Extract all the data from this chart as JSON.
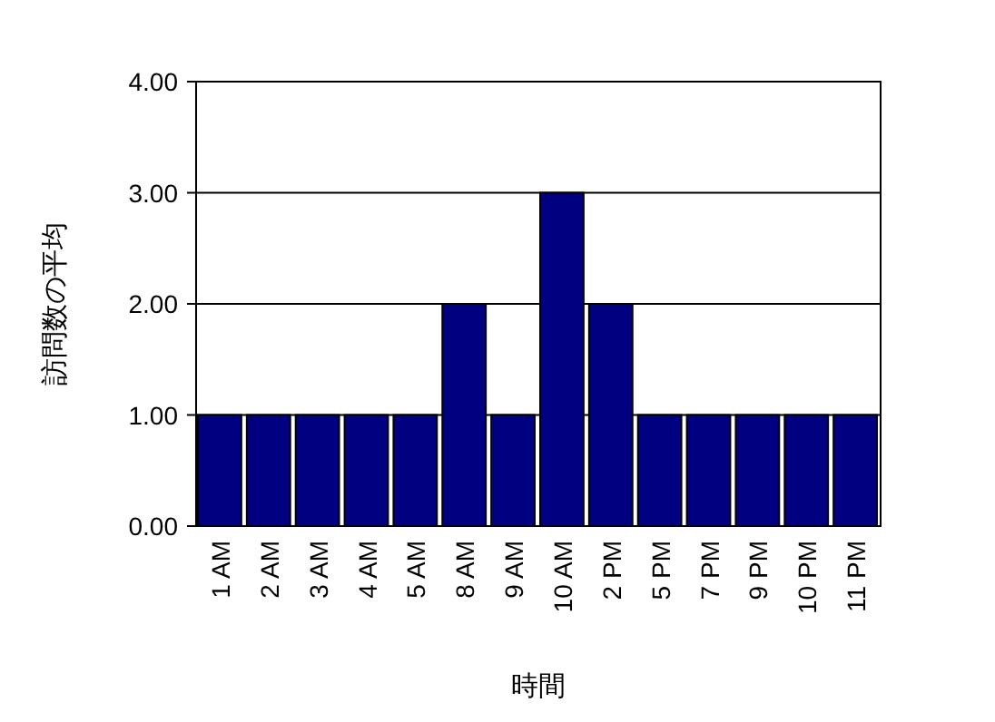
{
  "chart_data": {
    "type": "bar",
    "xlabel": "時間",
    "ylabel": "訪問数の平均",
    "categories": [
      "1 AM",
      "2 AM",
      "3 AM",
      "4 AM",
      "5 AM",
      "8 AM",
      "9 AM",
      "10 AM",
      "2 PM",
      "5 PM",
      "7 PM",
      "9 PM",
      "10 PM",
      "11 PM"
    ],
    "values": [
      1,
      1,
      1,
      1,
      1,
      2,
      1,
      3,
      2,
      1,
      1,
      1,
      1,
      1
    ],
    "color": "#000080",
    "ylim": [
      0,
      4
    ],
    "yticks": [
      {
        "value": 0,
        "label": "0.00"
      },
      {
        "value": 1,
        "label": "1.00"
      },
      {
        "value": 2,
        "label": "2.00"
      },
      {
        "value": 3,
        "label": "3.00"
      },
      {
        "value": 4,
        "label": "4.00"
      }
    ],
    "grid": "y"
  }
}
